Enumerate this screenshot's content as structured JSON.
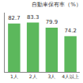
{
  "chart_data": {
    "type": "bar",
    "title": "自動車保有率（%）",
    "categories": [
      "1人",
      "2人",
      "3人",
      "4人以上"
    ],
    "values": [
      82.7,
      83.3,
      79.9,
      74.2
    ],
    "color": "#5cb85c",
    "ylim": [
      50,
      90
    ],
    "data_labels": true,
    "tick_labels": "x",
    "grid": false
  }
}
